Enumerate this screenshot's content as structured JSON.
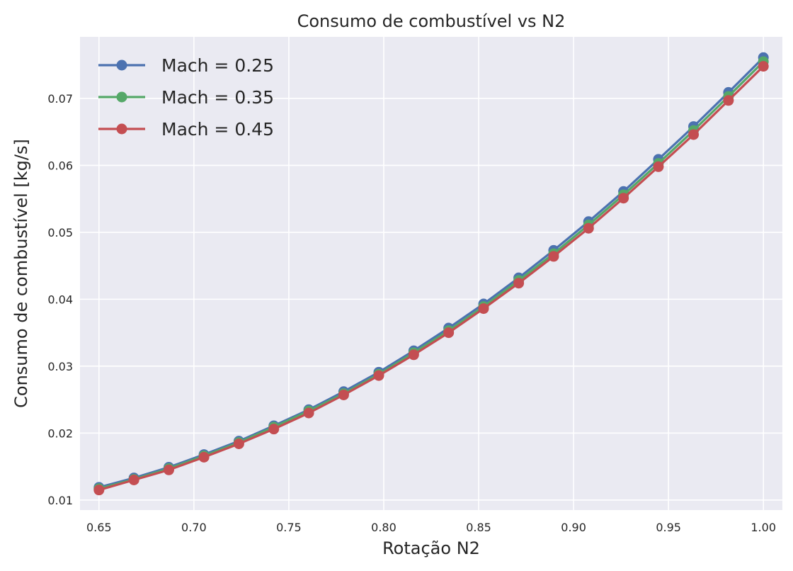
{
  "chart_data": {
    "type": "line",
    "title": "Consumo de combustível vs N2",
    "xlabel": "Rotação N2",
    "ylabel": "Consumo de combustível [kg/s]",
    "xlim": [
      0.64,
      1.01
    ],
    "ylim": [
      0.0085,
      0.0792
    ],
    "xticks": [
      0.65,
      0.7,
      0.75,
      0.8,
      0.85,
      0.9,
      0.95,
      1.0
    ],
    "xtick_labels": [
      "0.65",
      "0.70",
      "0.75",
      "0.80",
      "0.85",
      "0.90",
      "0.95",
      "1.00"
    ],
    "yticks": [
      0.01,
      0.02,
      0.03,
      0.04,
      0.05,
      0.06,
      0.07
    ],
    "ytick_labels": [
      "0.01",
      "0.02",
      "0.03",
      "0.04",
      "0.05",
      "0.06",
      "0.07"
    ],
    "grid": true,
    "legend_position": "top-left",
    "x": [
      0.65,
      0.6684,
      0.6868,
      0.7053,
      0.7237,
      0.7421,
      0.7605,
      0.7789,
      0.7974,
      0.8158,
      0.8342,
      0.8526,
      0.8711,
      0.8895,
      0.9079,
      0.9263,
      0.9447,
      0.9632,
      0.9816,
      1.0
    ],
    "series": [
      {
        "name": "Mach = 0.25",
        "color": "#4c72b0",
        "values": [
          0.0119,
          0.0133,
          0.0149,
          0.0168,
          0.0188,
          0.0211,
          0.0235,
          0.0262,
          0.0291,
          0.0323,
          0.0357,
          0.0393,
          0.0432,
          0.0473,
          0.0516,
          0.0561,
          0.0609,
          0.0658,
          0.0709,
          0.0761
        ]
      },
      {
        "name": "Mach = 0.35",
        "color": "#55a868",
        "values": [
          0.0117,
          0.0131,
          0.0147,
          0.0166,
          0.0186,
          0.0209,
          0.0233,
          0.0259,
          0.0288,
          0.032,
          0.0353,
          0.0389,
          0.0428,
          0.0468,
          0.0511,
          0.0556,
          0.0603,
          0.0652,
          0.0703,
          0.0755
        ]
      },
      {
        "name": "Mach = 0.45",
        "color": "#c44e52",
        "values": [
          0.0115,
          0.013,
          0.0145,
          0.0164,
          0.0184,
          0.0206,
          0.023,
          0.0257,
          0.0286,
          0.0317,
          0.035,
          0.0386,
          0.0424,
          0.0464,
          0.0506,
          0.0551,
          0.0598,
          0.0646,
          0.0697,
          0.0748
        ]
      }
    ],
    "colors": {
      "plot_background": "#eaeaf2",
      "grid": "#ffffff",
      "text": "#262626"
    }
  }
}
